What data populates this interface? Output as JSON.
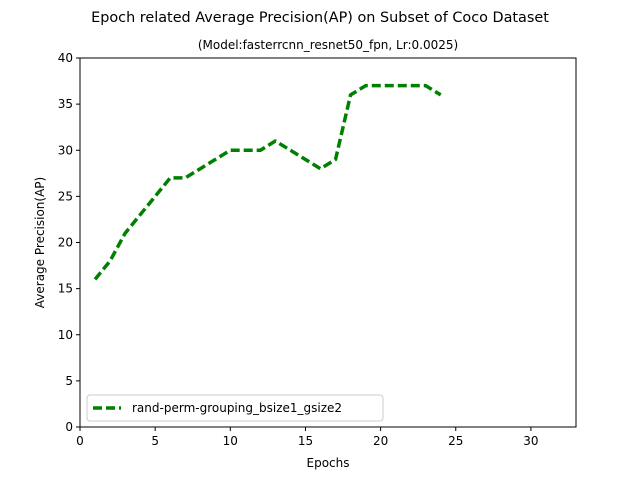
{
  "chart_data": {
    "type": "line",
    "title": "Epoch related Average Precision(AP) on Subset of Coco Dataset",
    "subtitle": "(Model:fasterrcnn_resnet50_fpn, Lr:0.0025)",
    "xlabel": "Epochs",
    "ylabel": "Average Precision(AP)",
    "xlim": [
      0,
      33
    ],
    "ylim": [
      0,
      40
    ],
    "xticks": [
      0,
      5,
      10,
      15,
      20,
      25,
      30
    ],
    "yticks": [
      0,
      5,
      10,
      15,
      20,
      25,
      30,
      35,
      40
    ],
    "grid": false,
    "legend_position": "lower-left",
    "series": [
      {
        "name": "rand-perm-grouping_bsize1_gsize2",
        "color": "#008000",
        "line_style": "dashed",
        "x": [
          1,
          2,
          3,
          4,
          5,
          6,
          7,
          8,
          9,
          10,
          11,
          12,
          13,
          14,
          15,
          16,
          17,
          18,
          19,
          20,
          21,
          22,
          23,
          24
        ],
        "y": [
          16,
          18,
          21,
          23,
          25,
          27,
          27,
          28,
          29,
          30,
          30,
          30,
          31,
          30,
          29,
          28,
          29,
          36,
          37,
          37,
          37,
          37,
          37,
          36
        ]
      }
    ]
  }
}
